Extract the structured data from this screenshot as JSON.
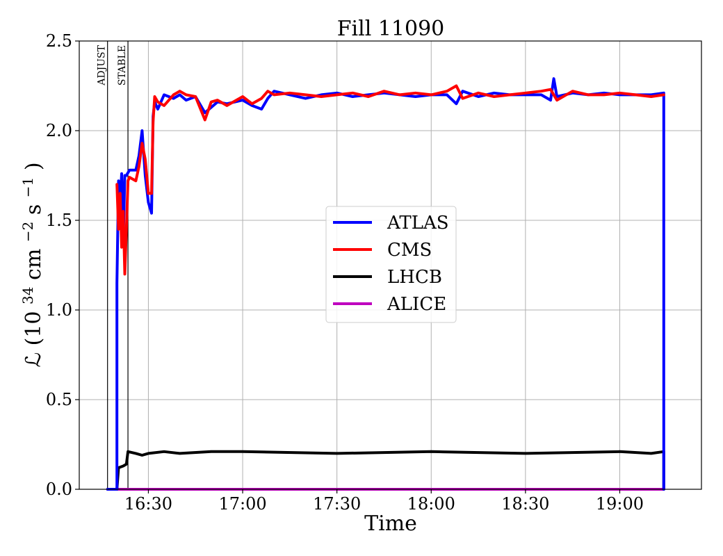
{
  "chart_data": {
    "type": "line",
    "title": "Fill 11090",
    "xlabel": "Time",
    "ylabel_prefix": "ℒ (10",
    "ylabel_exp1": "34",
    "ylabel_mid": " cm",
    "ylabel_exp2": "−2",
    "ylabel_s": "s",
    "ylabel_exp3": "−1",
    "ylabel_suffix": ")",
    "ylim": [
      0,
      2.5
    ],
    "xlim": [
      "16:08",
      "19:26"
    ],
    "x_ticks": [
      "16:30",
      "17:00",
      "17:30",
      "18:00",
      "18:30",
      "19:00"
    ],
    "y_ticks": [
      "0.0",
      "0.5",
      "1.0",
      "1.5",
      "2.0",
      "2.5"
    ],
    "y_tick_values": [
      0,
      0.5,
      1.0,
      1.5,
      2.0,
      2.5
    ],
    "grid": true,
    "legend_placement": "center-right",
    "markers": [
      {
        "label": "ADJUST",
        "x": "16:17"
      },
      {
        "label": "STABLE",
        "x": "16:23.5"
      }
    ],
    "series": [
      {
        "name": "ATLAS",
        "color": "#0000ff",
        "points": [
          [
            "16:17",
            0.0
          ],
          [
            "16:20",
            0.0
          ],
          [
            "16:20",
            1.15
          ],
          [
            "16:20.5",
            1.72
          ],
          [
            "16:21",
            1.6
          ],
          [
            "16:21.5",
            1.76
          ],
          [
            "16:22",
            1.38
          ],
          [
            "16:22.5",
            1.75
          ],
          [
            "16:23",
            1.75
          ],
          [
            "16:24",
            1.78
          ],
          [
            "16:26",
            1.78
          ],
          [
            "16:27",
            1.86
          ],
          [
            "16:28",
            2.0
          ],
          [
            "16:29",
            1.75
          ],
          [
            "16:30",
            1.6
          ],
          [
            "16:31",
            1.54
          ],
          [
            "16:31.5",
            2.08
          ],
          [
            "16:32",
            2.16
          ],
          [
            "16:33",
            2.12
          ],
          [
            "16:35",
            2.2
          ],
          [
            "16:38",
            2.18
          ],
          [
            "16:40",
            2.2
          ],
          [
            "16:42",
            2.17
          ],
          [
            "16:45",
            2.19
          ],
          [
            "16:48",
            2.1
          ],
          [
            "16:50",
            2.13
          ],
          [
            "16:52",
            2.16
          ],
          [
            "16:55",
            2.15
          ],
          [
            "17:00",
            2.17
          ],
          [
            "17:03",
            2.14
          ],
          [
            "17:06",
            2.12
          ],
          [
            "17:08",
            2.18
          ],
          [
            "17:10",
            2.22
          ],
          [
            "17:15",
            2.2
          ],
          [
            "17:20",
            2.18
          ],
          [
            "17:25",
            2.2
          ],
          [
            "17:30",
            2.21
          ],
          [
            "17:35",
            2.19
          ],
          [
            "17:40",
            2.2
          ],
          [
            "17:45",
            2.21
          ],
          [
            "17:50",
            2.2
          ],
          [
            "17:55",
            2.19
          ],
          [
            "18:00",
            2.2
          ],
          [
            "18:05",
            2.2
          ],
          [
            "18:08",
            2.15
          ],
          [
            "18:10",
            2.22
          ],
          [
            "18:15",
            2.19
          ],
          [
            "18:20",
            2.21
          ],
          [
            "18:25",
            2.2
          ],
          [
            "18:30",
            2.2
          ],
          [
            "18:35",
            2.2
          ],
          [
            "18:38",
            2.17
          ],
          [
            "18:39",
            2.29
          ],
          [
            "18:40",
            2.19
          ],
          [
            "18:45",
            2.21
          ],
          [
            "18:50",
            2.2
          ],
          [
            "18:55",
            2.21
          ],
          [
            "19:00",
            2.2
          ],
          [
            "19:05",
            2.2
          ],
          [
            "19:10",
            2.2
          ],
          [
            "19:14",
            2.21
          ],
          [
            "19:14",
            0.0
          ]
        ]
      },
      {
        "name": "CMS",
        "color": "#ff0000",
        "points": [
          [
            "16:20",
            1.7
          ],
          [
            "16:20.5",
            1.45
          ],
          [
            "16:21",
            1.65
          ],
          [
            "16:21.5",
            1.35
          ],
          [
            "16:22",
            1.55
          ],
          [
            "16:22.5",
            1.2
          ],
          [
            "16:23",
            1.45
          ],
          [
            "16:23.5",
            1.72
          ],
          [
            "16:24",
            1.74
          ],
          [
            "16:26",
            1.72
          ],
          [
            "16:27",
            1.8
          ],
          [
            "16:28",
            1.93
          ],
          [
            "16:29",
            1.84
          ],
          [
            "16:30",
            1.65
          ],
          [
            "16:31",
            1.65
          ],
          [
            "16:31.5",
            2.05
          ],
          [
            "16:32",
            2.19
          ],
          [
            "16:33",
            2.16
          ],
          [
            "16:35",
            2.14
          ],
          [
            "16:38",
            2.2
          ],
          [
            "16:40",
            2.22
          ],
          [
            "16:42",
            2.2
          ],
          [
            "16:45",
            2.19
          ],
          [
            "16:48",
            2.06
          ],
          [
            "16:50",
            2.16
          ],
          [
            "16:52",
            2.17
          ],
          [
            "16:55",
            2.14
          ],
          [
            "17:00",
            2.19
          ],
          [
            "17:03",
            2.15
          ],
          [
            "17:06",
            2.18
          ],
          [
            "17:08",
            2.22
          ],
          [
            "17:10",
            2.2
          ],
          [
            "17:15",
            2.21
          ],
          [
            "17:20",
            2.2
          ],
          [
            "17:25",
            2.19
          ],
          [
            "17:30",
            2.2
          ],
          [
            "17:35",
            2.21
          ],
          [
            "17:40",
            2.19
          ],
          [
            "17:45",
            2.22
          ],
          [
            "17:50",
            2.2
          ],
          [
            "17:55",
            2.21
          ],
          [
            "18:00",
            2.2
          ],
          [
            "18:05",
            2.22
          ],
          [
            "18:08",
            2.25
          ],
          [
            "18:10",
            2.18
          ],
          [
            "18:15",
            2.21
          ],
          [
            "18:20",
            2.19
          ],
          [
            "18:25",
            2.2
          ],
          [
            "18:30",
            2.21
          ],
          [
            "18:35",
            2.22
          ],
          [
            "18:38",
            2.23
          ],
          [
            "18:40",
            2.17
          ],
          [
            "18:45",
            2.22
          ],
          [
            "18:50",
            2.2
          ],
          [
            "18:55",
            2.2
          ],
          [
            "19:00",
            2.21
          ],
          [
            "19:05",
            2.2
          ],
          [
            "19:10",
            2.19
          ],
          [
            "19:14",
            2.2
          ]
        ]
      },
      {
        "name": "LHCB",
        "color": "#000000",
        "points": [
          [
            "16:20",
            0.0
          ],
          [
            "16:20.5",
            0.12
          ],
          [
            "16:22",
            0.13
          ],
          [
            "16:23",
            0.14
          ],
          [
            "16:23.5",
            0.21
          ],
          [
            "16:26",
            0.2
          ],
          [
            "16:28",
            0.19
          ],
          [
            "16:30",
            0.2
          ],
          [
            "16:35",
            0.21
          ],
          [
            "16:40",
            0.2
          ],
          [
            "16:50",
            0.21
          ],
          [
            "17:00",
            0.21
          ],
          [
            "17:30",
            0.2
          ],
          [
            "18:00",
            0.21
          ],
          [
            "18:30",
            0.2
          ],
          [
            "19:00",
            0.21
          ],
          [
            "19:10",
            0.2
          ],
          [
            "19:14",
            0.21
          ],
          [
            "19:14",
            0.0
          ]
        ]
      },
      {
        "name": "ALICE",
        "color": "#bf00bf",
        "points": [
          [
            "16:17",
            0.0
          ],
          [
            "19:14",
            0.0
          ]
        ]
      }
    ]
  }
}
